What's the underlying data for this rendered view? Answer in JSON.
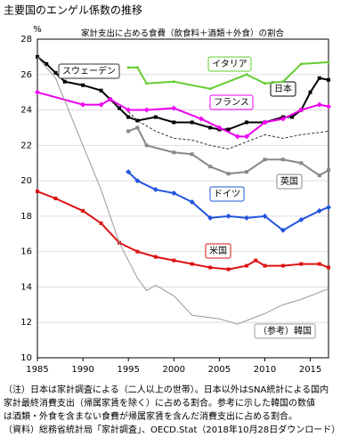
{
  "chart_data": {
    "type": "line",
    "title": "主要国のエンゲル係数の推移",
    "subtitle": "家計支出に占める食費（飲食料＋酒類＋外食）の割合",
    "y_unit": "%",
    "xlim": [
      1985,
      2017
    ],
    "xticks": [
      1985,
      1990,
      1995,
      2000,
      2005,
      2010,
      2015
    ],
    "ylim": [
      10,
      28
    ],
    "yticks": [
      10,
      12,
      14,
      16,
      18,
      20,
      22,
      24,
      26,
      28
    ],
    "grid": true,
    "series": [
      {
        "name": "日本",
        "color": "#000000",
        "marker": "square",
        "dash": false,
        "x": [
          1985,
          1986,
          1987,
          1988,
          1990,
          1992,
          1993,
          1994,
          1995,
          1996,
          1998,
          2000,
          2002,
          2004,
          2005,
          2006,
          2008,
          2010,
          2012,
          2013,
          2014,
          2015,
          2016,
          2017
        ],
        "values": [
          27.0,
          26.6,
          26.1,
          25.6,
          25.4,
          25.1,
          24.6,
          24.1,
          23.6,
          23.4,
          23.6,
          23.3,
          23.3,
          23.0,
          22.9,
          22.9,
          23.3,
          23.3,
          23.6,
          23.6,
          24.0,
          25.0,
          25.8,
          25.7
        ]
      },
      {
        "name": "スウェーデン",
        "color": "#333333",
        "marker": "none",
        "dash": true,
        "x": [
          1995,
          1996,
          1998,
          2000,
          2002,
          2004,
          2006,
          2008,
          2010,
          2012,
          2014,
          2017
        ],
        "values": [
          23.9,
          23.4,
          22.8,
          22.4,
          22.3,
          22.0,
          21.8,
          22.2,
          22.6,
          22.4,
          22.6,
          22.8
        ]
      },
      {
        "name": "イタリア",
        "color": "#66cc33",
        "marker": "dot",
        "dash": false,
        "x": [
          1995,
          1996,
          1997,
          2000,
          2004,
          2008,
          2010,
          2012,
          2014,
          2017
        ],
        "values": [
          26.4,
          26.4,
          25.5,
          25.6,
          25.2,
          26.0,
          25.5,
          25.6,
          26.6,
          26.7
        ]
      },
      {
        "name": "フランス",
        "color": "#ee00ee",
        "marker": "diamond",
        "dash": false,
        "x": [
          1985,
          1990,
          1992,
          1993,
          1995,
          1997,
          2000,
          2003,
          2005,
          2007,
          2008,
          2010,
          2012,
          2014,
          2016,
          2017
        ],
        "values": [
          25.0,
          24.3,
          24.3,
          24.6,
          24.0,
          24.0,
          24.1,
          23.5,
          23.0,
          22.5,
          22.5,
          23.3,
          23.5,
          24.0,
          24.3,
          24.2
        ]
      },
      {
        "name": "英国",
        "color": "#888888",
        "marker": "square",
        "dash": false,
        "x": [
          1995,
          1996,
          1997,
          2000,
          2002,
          2004,
          2006,
          2008,
          2010,
          2012,
          2014,
          2016,
          2017
        ],
        "values": [
          22.8,
          23.0,
          22.0,
          21.6,
          21.5,
          20.8,
          20.4,
          20.5,
          21.2,
          21.2,
          21.0,
          20.3,
          20.6
        ]
      },
      {
        "name": "ドイツ",
        "color": "#2255dd",
        "marker": "diamond",
        "dash": false,
        "x": [
          1995,
          1996,
          1998,
          2000,
          2002,
          2004,
          2006,
          2008,
          2010,
          2012,
          2014,
          2016,
          2017
        ],
        "values": [
          20.5,
          20.0,
          19.5,
          19.3,
          18.8,
          17.9,
          18.0,
          17.9,
          18.0,
          17.2,
          17.8,
          18.3,
          18.5
        ]
      },
      {
        "name": "米国",
        "color": "#dd1111",
        "marker": "square",
        "dash": false,
        "x": [
          1985,
          1987,
          1990,
          1992,
          1994,
          1996,
          1998,
          2000,
          2002,
          2004,
          2006,
          2008,
          2009,
          2010,
          2012,
          2014,
          2016,
          2017
        ],
        "values": [
          19.4,
          19.0,
          18.3,
          17.6,
          16.5,
          16.0,
          15.7,
          15.5,
          15.3,
          15.1,
          15.0,
          15.2,
          15.5,
          15.2,
          15.2,
          15.3,
          15.3,
          15.1
        ]
      },
      {
        "name": "（参考）韓国",
        "color": "#999999",
        "marker": "none",
        "dash": false,
        "x": [
          1985,
          1987,
          1990,
          1992,
          1994,
          1996,
          1997,
          1998,
          2000,
          2002,
          2005,
          2007,
          2010,
          2012,
          2014,
          2017
        ],
        "values": [
          27.0,
          25.8,
          22.0,
          19.5,
          16.5,
          14.5,
          13.8,
          14.1,
          13.5,
          12.4,
          12.2,
          11.9,
          12.5,
          13.0,
          13.3,
          13.9
        ]
      }
    ]
  },
  "notes": [
    "（注）日本は家計調査による（二人以上の世帯）。日本以外はSNA統計による国内",
    "家計最終消費支出（帰属家賃を除く）に占める割合。参考に示した韓国の数値",
    "は酒類・外食を含まない食費が帰属家賃を含んだ消費支出に占める割合。",
    "（資料）総務省統計局「家計調査」、OECD.Stat（2018年10月28日ダウンロード）"
  ]
}
